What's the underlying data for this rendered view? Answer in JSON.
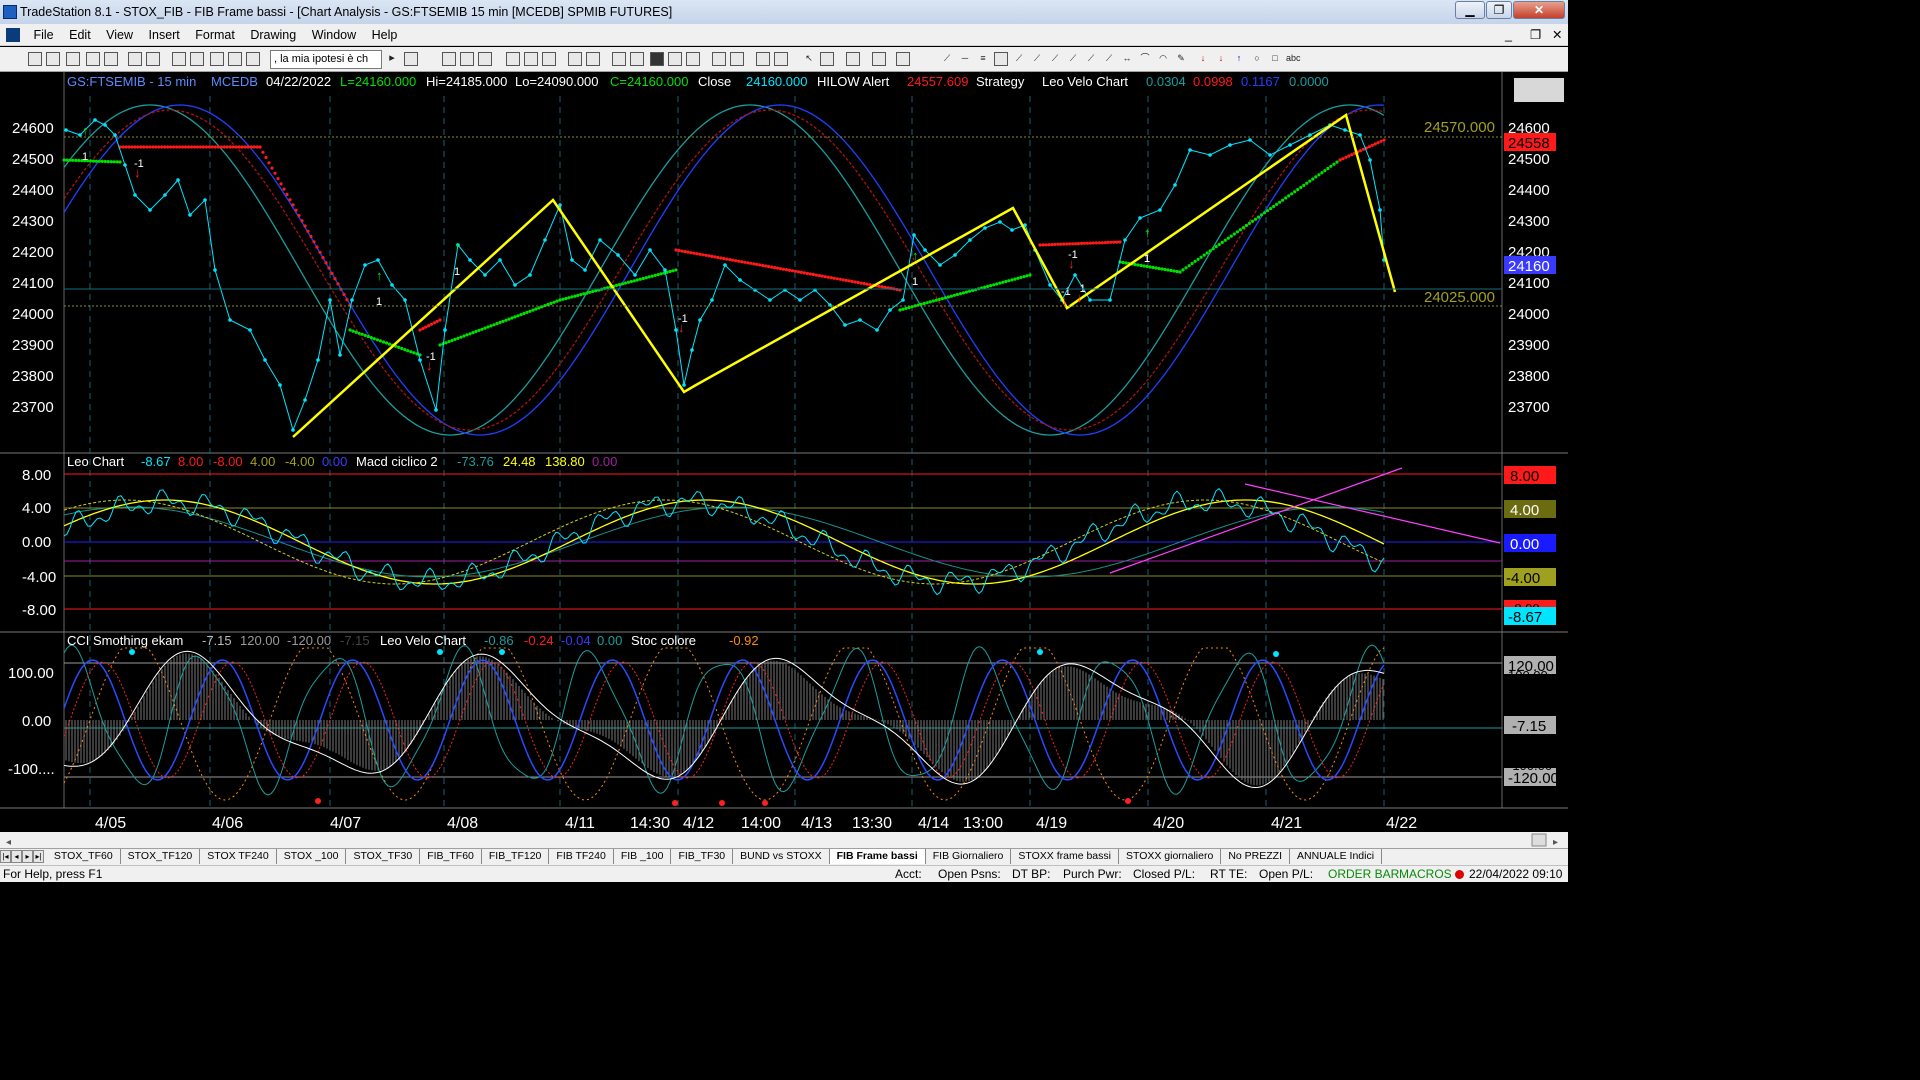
{
  "window": {
    "title": "TradeStation 8.1 - STOX_FIB - FIB Frame bassi - [Chart Analysis - GS:FTSEMIB  15 min  [MCEDB] SPMIB FUTURES]",
    "buttons": {
      "minimize": "▁",
      "restore": "❐",
      "close": "✕"
    }
  },
  "menu": {
    "items": [
      "File",
      "Edit",
      "View",
      "Insert",
      "Format",
      "Drawing",
      "Window",
      "Help"
    ],
    "mdi_buttons": {
      "minimize": "_",
      "restore": "❐",
      "close": "✕"
    }
  },
  "toolbar": {
    "combo_value": ", la mia ipotesi è ch"
  },
  "chart": {
    "header": {
      "symbol": "GS:FTSEMIB - 15 min",
      "source": "MCEDB",
      "date": "04/22/2022",
      "last": "L=24160.000",
      "high": "Hi=24185.000",
      "low": "Lo=24090.000",
      "close_val": "C=24160.000",
      "close_label": "Close",
      "close_num": "24160.000",
      "hilow": "HILOW Alert",
      "hilow_val": "24557.609",
      "strategy": "Strategy",
      "leovelo": "Leo Velo Chart",
      "lv1": "0.0304",
      "lv2": "0.0998",
      "lv3": "0.1167",
      "lv4": "0.0000"
    },
    "price_axis": [
      "24600",
      "24500",
      "24400",
      "24300",
      "24200",
      "24100",
      "24000",
      "23900",
      "23800",
      "23700"
    ],
    "price_markers": {
      "hilow": "24558",
      "last": "24160",
      "level_high": "24570.000",
      "level_low": "24025.000"
    },
    "price_axis_extra": "24200",
    "panel2": {
      "title": "Leo Chart",
      "v1": "-8.67",
      "v2": "8.00",
      "v3": "-8.00",
      "v4": "4.00",
      "v5": "-4.00",
      "v6": "0.00",
      "macd_title": "Macd ciclico 2",
      "m1": "-73.76",
      "m2": "24.48",
      "m3": "138.80",
      "m4": "0.00",
      "axis": [
        "8.00",
        "4.00",
        "0.00",
        "-4.00",
        "-8.00"
      ],
      "markers": [
        "8.00",
        "4.00",
        "0.00",
        "-4.00",
        "-8.67"
      ],
      "marker_behind": "-8.00"
    },
    "panel3": {
      "title": "CCI Smothing ekam",
      "c1": "-7.15",
      "c2": "120.00",
      "c3": "-120.00",
      "c4": "-7.15",
      "leovelo": "Leo Velo Chart",
      "l1": "-0.86",
      "l2": "-0.24",
      "l3": "-0.04",
      "l4": "0.00",
      "stoc": "Stoc colore",
      "s1": "-0.92",
      "axis": [
        "100.00",
        "0.00",
        "-100...."
      ],
      "markers": [
        "120.00",
        "-7.15",
        "-120.00"
      ],
      "markers_behind": [
        "100.00",
        "-100.00"
      ]
    },
    "time_axis": [
      "4/05",
      "4/06",
      "4/07",
      "4/08",
      "4/11",
      "14:30",
      "4/12",
      "14:00",
      "4/13",
      "13:30",
      "4/14",
      "13:00",
      "4/19",
      "4/20",
      "4/21",
      "4/22"
    ],
    "signals": [
      "1",
      "-1",
      "-1",
      "1",
      "1",
      "-1",
      "1",
      "-1",
      "-1",
      "1",
      "-1",
      "1"
    ],
    "colors": {
      "price": "#00e5ff",
      "hilow_red": "#ff1a1a",
      "hilow_green": "#00e000",
      "zigzag": "#ffff00",
      "band_teal": "#1a9e9e",
      "band_blue": "#2040ff",
      "band_darkred": "#b01010",
      "label_pink": "#ff40ff",
      "axis_text": "#ffffff"
    }
  },
  "tabs": {
    "nav": [
      "|◂",
      "◂",
      "▸",
      "▸|"
    ],
    "items": [
      "STOX_TF60",
      "STOX_TF120",
      "STOX TF240",
      "STOX _100",
      "STOX_TF30",
      "FIB_TF60",
      "FIB_TF120",
      "FIB TF240",
      "FIB _100",
      "FIB_TF30",
      "BUND vs STOXX",
      "FIB Frame bassi",
      "FIB Giornaliero",
      "STOXX frame bassi",
      "STOXX giornaliero",
      "No PREZZI",
      "ANNUALE Indici"
    ],
    "active_index": 11
  },
  "status": {
    "help": "For Help, press F1",
    "acct": "Acct:",
    "open_psns": "Open Psns:",
    "dt_bp": "DT BP:",
    "purch_pwr": "Purch Pwr:",
    "closed_pl": "Closed P/L:",
    "rt_te": "RT TE:",
    "open_pl": "Open P/L:",
    "mode": "ORDER BAR",
    "macros": "MACROS",
    "datetime": "22/04/2022 09:10"
  }
}
